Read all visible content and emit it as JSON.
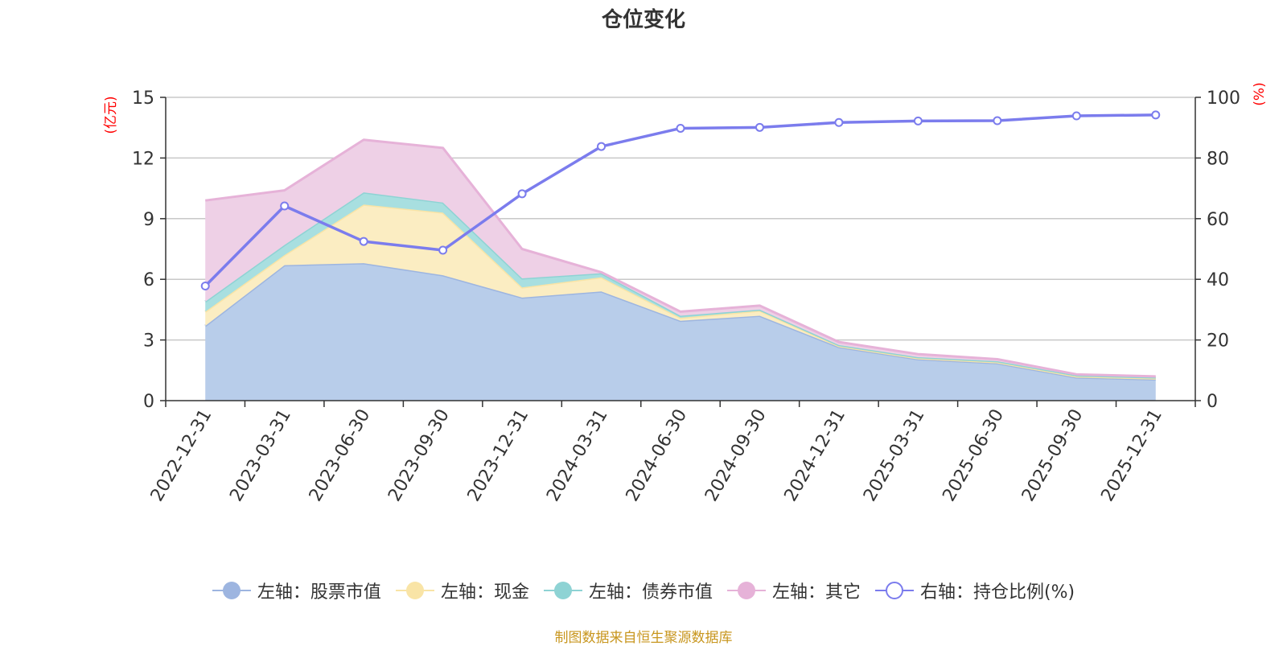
{
  "chart_data": {
    "type": "area",
    "title": "仓位变化",
    "left_axis_unit": "(亿元)",
    "right_axis_unit": "(%)",
    "categories": [
      "2022-12-31",
      "2023-03-31",
      "2023-06-30",
      "2023-09-30",
      "2023-12-31",
      "2024-03-31",
      "2024-06-30",
      "2024-09-30",
      "2024-12-31",
      "2025-03-31",
      "2025-06-30",
      "2025-09-30",
      "2025-12-31"
    ],
    "ylim_left": [
      0,
      15
    ],
    "yticks_left": [
      0,
      3,
      6,
      9,
      12,
      15
    ],
    "ylim_right": [
      0,
      100
    ],
    "yticks_right": [
      0,
      20,
      40,
      60,
      80,
      100
    ],
    "stacked_series": [
      {
        "name": "左轴：股票市值",
        "axis": "left",
        "color": "#9db5e0",
        "fill": "#b8cdea",
        "values": [
          3.7,
          6.7,
          6.8,
          6.2,
          5.1,
          5.4,
          3.95,
          4.2,
          2.65,
          2.05,
          1.85,
          1.15,
          1.05
        ]
      },
      {
        "name": "左轴：现金",
        "axis": "left",
        "color": "#f9e4a6",
        "fill": "#fbedc2",
        "values": [
          0.7,
          0.5,
          2.9,
          3.1,
          0.5,
          0.7,
          0.15,
          0.25,
          0.05,
          0.05,
          0.05,
          0.05,
          0.05
        ]
      },
      {
        "name": "左轴：债券市值",
        "axis": "left",
        "color": "#8ed3d4",
        "fill": "#a8dfe0",
        "values": [
          0.5,
          0.5,
          0.6,
          0.5,
          0.45,
          0.2,
          0.1,
          0.05,
          0.05,
          0.05,
          0.05,
          0.05,
          0.05
        ]
      },
      {
        "name": "左轴：其它",
        "axis": "left",
        "color": "#e6b2d8",
        "fill": "#eed0e6",
        "values": [
          5.0,
          2.7,
          2.6,
          2.7,
          1.45,
          0.05,
          0.2,
          0.2,
          0.15,
          0.15,
          0.1,
          0.05,
          0.05
        ]
      }
    ],
    "line_series": {
      "name": "右轴：持仓比例(%)",
      "axis": "right",
      "color": "#7b7ced",
      "values": [
        37.8,
        64.2,
        52.5,
        49.6,
        68.2,
        83.8,
        89.8,
        90.1,
        91.7,
        92.2,
        92.3,
        93.9,
        94.2
      ]
    }
  },
  "source": "制图数据来自恒生聚源数据库"
}
